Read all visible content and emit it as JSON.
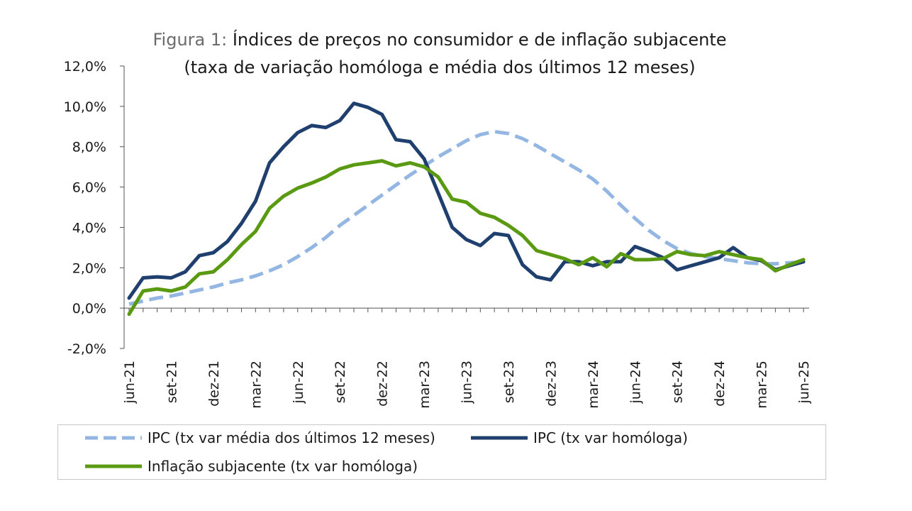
{
  "chart_data": {
    "type": "line",
    "title_prefix": "Figura 1:",
    "title_main": " Índices de preços no consumidor e de inflação subjacente",
    "subtitle": "(taxa de variação homóloga e média dos últimos 12 meses)",
    "ylim": [
      -2.0,
      12.0
    ],
    "yticks": [
      -2.0,
      0.0,
      2.0,
      4.0,
      6.0,
      8.0,
      10.0,
      12.0
    ],
    "ytick_labels": [
      "-2,0%",
      "0,0%",
      "2,0%",
      "4,0%",
      "6,0%",
      "8,0%",
      "10,0%",
      "12,0%"
    ],
    "x_labels": [
      "jun-21",
      "set-21",
      "dez-21",
      "mar-22",
      "jun-22",
      "set-22",
      "dez-22",
      "mar-23",
      "jun-23",
      "set-23",
      "dez-23",
      "mar-24",
      "jun-24",
      "set-24",
      "dez-24",
      "mar-25",
      "jun-25"
    ],
    "x_label_step": 3,
    "n_points": 49,
    "colors": {
      "avg12": "#94b6e3",
      "ipc": "#1f3f6e",
      "core": "#5a9a12",
      "axis": "#555555"
    },
    "series": [
      {
        "name": "IPC (tx var média dos últimos 12 meses)",
        "style": "dashed",
        "values": [
          0.2,
          0.35,
          0.5,
          0.6,
          0.75,
          0.9,
          1.05,
          1.25,
          1.4,
          1.6,
          1.85,
          2.15,
          2.55,
          3.0,
          3.5,
          4.1,
          4.6,
          5.1,
          5.6,
          6.1,
          6.6,
          7.05,
          7.5,
          7.9,
          8.3,
          8.6,
          8.75,
          8.65,
          8.4,
          8.05,
          7.65,
          7.25,
          6.85,
          6.4,
          5.8,
          5.1,
          4.45,
          3.85,
          3.35,
          2.95,
          2.7,
          2.55,
          2.45,
          2.35,
          2.25,
          2.2,
          2.2,
          2.25,
          2.3
        ]
      },
      {
        "name": "IPC (tx var homóloga)",
        "style": "solid",
        "values": [
          0.5,
          1.5,
          1.55,
          1.5,
          1.8,
          2.6,
          2.75,
          3.3,
          4.2,
          5.3,
          7.2,
          8.0,
          8.7,
          9.05,
          8.95,
          9.3,
          10.15,
          9.95,
          9.6,
          8.35,
          8.25,
          7.4,
          5.7,
          4.0,
          3.4,
          3.1,
          3.7,
          3.6,
          2.15,
          1.55,
          1.4,
          2.3,
          2.3,
          2.1,
          2.3,
          2.3,
          3.05,
          2.8,
          2.5,
          1.9,
          2.1,
          2.3,
          2.5,
          3.0,
          2.5,
          2.35,
          1.9,
          2.1,
          2.3
        ]
      },
      {
        "name": "Inflação subjacente (tx var homóloga)",
        "style": "solid",
        "values": [
          -0.3,
          0.85,
          0.95,
          0.85,
          1.05,
          1.7,
          1.8,
          2.4,
          3.15,
          3.8,
          4.95,
          5.55,
          5.95,
          6.2,
          6.5,
          6.9,
          7.1,
          7.2,
          7.3,
          7.05,
          7.2,
          7.0,
          6.5,
          5.4,
          5.25,
          4.7,
          4.5,
          4.1,
          3.6,
          2.85,
          2.65,
          2.45,
          2.15,
          2.5,
          2.05,
          2.7,
          2.4,
          2.4,
          2.45,
          2.8,
          2.65,
          2.6,
          2.8,
          2.65,
          2.5,
          2.4,
          1.85,
          2.15,
          2.4
        ]
      }
    ]
  }
}
